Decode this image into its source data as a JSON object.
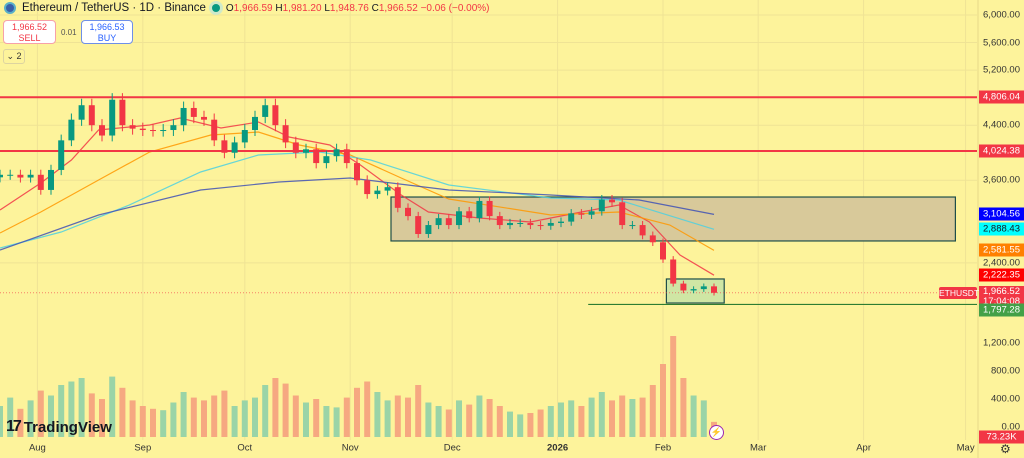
{
  "header": {
    "title": "Ethereum / TetherUS · 1D · Binance",
    "o_label": "O",
    "o": "1,966.59",
    "h_label": "H",
    "h": "1,981.20",
    "l_label": "L",
    "l": "1,948.76",
    "c_label": "C",
    "c": "1,966.52",
    "change": "−0.06 (−0.00%)"
  },
  "trade": {
    "sell_price": "1,966.52",
    "sell_label": "SELL",
    "spread": "0.01",
    "buy_price": "1,966.53",
    "buy_label": "BUY"
  },
  "indicators_toggle": "⌄ 2",
  "branding": "TradingView",
  "symbol_tag": "ETHUSDT",
  "countdown": "17:04:08",
  "colors": {
    "background": "#fdf39b",
    "up": "#089981",
    "down": "#f23645",
    "ma20": "#f23645",
    "ma50": "#ff9800",
    "ma100": "#4dd0e1",
    "ma200": "#3f51b5",
    "resistance": "#f23645",
    "support": "#4caf50",
    "range_box": "#d8c99a",
    "consolidation_box": "#cfe6a4"
  },
  "chart_data": {
    "type": "candlestick",
    "title": "",
    "price_axis": {
      "ticks": [
        "6,000.00",
        "5,600.00",
        "5,200.00",
        "4,400.00",
        "3,600.00",
        "2,400.00"
      ],
      "tick_values": [
        6000,
        5600,
        5200,
        4400,
        3600,
        2400
      ],
      "range": [
        1100,
        6100
      ]
    },
    "volume_axis": {
      "ticks": [
        "1,200.00",
        "800.00",
        "400.00",
        "0.00"
      ],
      "tick_values": [
        1200,
        800,
        400,
        0
      ]
    },
    "time_axis": {
      "ticks": [
        "Aug",
        "Sep",
        "Oct",
        "Nov",
        "Dec",
        "2026",
        "Feb",
        "Mar",
        "Apr",
        "May"
      ],
      "tick_dates": [
        "2025-08-01",
        "2025-09-01",
        "2025-10-01",
        "2025-11-01",
        "2025-12-01",
        "2026-01-01",
        "2026-02-01",
        "2026-03-01",
        "2026-04-01",
        "2026-05-01"
      ]
    },
    "grid": true,
    "dates": [
      "2025-07-21",
      "2025-07-24",
      "2025-07-27",
      "2025-07-30",
      "2025-08-02",
      "2025-08-05",
      "2025-08-08",
      "2025-08-11",
      "2025-08-14",
      "2025-08-17",
      "2025-08-20",
      "2025-08-23",
      "2025-08-26",
      "2025-08-29",
      "2025-09-01",
      "2025-09-04",
      "2025-09-07",
      "2025-09-10",
      "2025-09-13",
      "2025-09-16",
      "2025-09-19",
      "2025-09-22",
      "2025-09-25",
      "2025-09-28",
      "2025-10-01",
      "2025-10-04",
      "2025-10-07",
      "2025-10-10",
      "2025-10-13",
      "2025-10-16",
      "2025-10-19",
      "2025-10-22",
      "2025-10-25",
      "2025-10-28",
      "2025-10-31",
      "2025-11-03",
      "2025-11-06",
      "2025-11-09",
      "2025-11-12",
      "2025-11-15",
      "2025-11-18",
      "2025-11-21",
      "2025-11-24",
      "2025-11-27",
      "2025-11-30",
      "2025-12-03",
      "2025-12-06",
      "2025-12-09",
      "2025-12-12",
      "2025-12-15",
      "2025-12-18",
      "2025-12-21",
      "2025-12-24",
      "2025-12-27",
      "2025-12-30",
      "2026-01-02",
      "2026-01-05",
      "2026-01-08",
      "2026-01-11",
      "2026-01-14",
      "2026-01-17",
      "2026-01-20",
      "2026-01-23",
      "2026-01-26",
      "2026-01-29",
      "2026-02-01",
      "2026-02-04",
      "2026-02-07",
      "2026-02-10",
      "2026-02-13",
      "2026-02-16"
    ],
    "close": [
      3680,
      3680,
      3640,
      3680,
      3460,
      3750,
      4180,
      4480,
      4690,
      4400,
      4250,
      4770,
      4400,
      4350,
      4330,
      4320,
      4330,
      4400,
      4650,
      4520,
      4480,
      4180,
      4000,
      4150,
      4330,
      4520,
      4690,
      4400,
      4150,
      4000,
      4050,
      3850,
      3950,
      4050,
      3850,
      3600,
      3400,
      3450,
      3500,
      3200,
      3080,
      2820,
      2950,
      3050,
      2950,
      3150,
      3050,
      3300,
      3080,
      2950,
      2980,
      2980,
      2950,
      2940,
      2980,
      3000,
      3120,
      3100,
      3150,
      3320,
      3280,
      2950,
      2950,
      2800,
      2700,
      2450,
      2100,
      2000,
      2020,
      2060,
      1966.52
    ],
    "volume": [
      300,
      420,
      260,
      380,
      520,
      450,
      600,
      650,
      700,
      480,
      400,
      720,
      560,
      380,
      300,
      260,
      240,
      350,
      500,
      420,
      380,
      450,
      520,
      300,
      380,
      420,
      600,
      700,
      620,
      450,
      350,
      400,
      300,
      280,
      420,
      560,
      650,
      500,
      380,
      450,
      420,
      600,
      350,
      300,
      250,
      380,
      320,
      450,
      400,
      300,
      220,
      180,
      200,
      250,
      300,
      350,
      380,
      300,
      420,
      500,
      380,
      450,
      400,
      420,
      600,
      900,
      1300,
      700,
      450,
      380,
      73.23
    ],
    "volume_last": "73.23K",
    "moving_averages": [
      {
        "key": "ma20",
        "last": "2,222.35",
        "points": [
          [
            "2025-07-21",
            3169
          ],
          [
            "2025-08-02",
            3560
          ],
          [
            "2025-08-11",
            3895
          ],
          [
            "2025-08-19",
            4330
          ],
          [
            "2025-09-03",
            4403
          ],
          [
            "2025-09-12",
            4504
          ],
          [
            "2025-09-24",
            4359
          ],
          [
            "2025-10-05",
            4446
          ],
          [
            "2025-10-14",
            4228
          ],
          [
            "2025-10-26",
            4112
          ],
          [
            "2025-11-04",
            3822
          ],
          [
            "2025-11-16",
            3386
          ],
          [
            "2025-11-24",
            3140
          ],
          [
            "2025-12-09",
            3053
          ],
          [
            "2025-12-24",
            2995
          ],
          [
            "2026-01-08",
            3140
          ],
          [
            "2026-01-19",
            3241
          ],
          [
            "2026-01-28",
            2995
          ],
          [
            "2026-02-06",
            2515
          ],
          [
            "2026-02-16",
            2222.35
          ]
        ]
      },
      {
        "key": "ma50",
        "last": "2,581.55",
        "points": [
          [
            "2025-07-21",
            2835
          ],
          [
            "2025-08-02",
            3140
          ],
          [
            "2025-08-19",
            3604
          ],
          [
            "2025-09-03",
            4011
          ],
          [
            "2025-09-21",
            4258
          ],
          [
            "2025-10-05",
            4301
          ],
          [
            "2025-10-17",
            4112
          ],
          [
            "2025-11-01",
            3967
          ],
          [
            "2025-11-16",
            3633
          ],
          [
            "2025-11-30",
            3328
          ],
          [
            "2025-12-30",
            3096
          ],
          [
            "2026-01-19",
            3140
          ],
          [
            "2026-02-03",
            2951
          ],
          [
            "2026-02-16",
            2581.55
          ]
        ]
      },
      {
        "key": "ma100",
        "last": "2,888.43",
        "points": [
          [
            "2025-07-21",
            2617
          ],
          [
            "2025-08-08",
            2849
          ],
          [
            "2025-08-28",
            3240
          ],
          [
            "2025-09-18",
            3720
          ],
          [
            "2025-10-05",
            3967
          ],
          [
            "2025-10-23",
            4011
          ],
          [
            "2025-11-07",
            3895
          ],
          [
            "2025-11-30",
            3532
          ],
          [
            "2025-12-30",
            3343
          ],
          [
            "2026-01-19",
            3314
          ],
          [
            "2026-02-16",
            2888.43
          ]
        ]
      },
      {
        "key": "ma200",
        "last": "3,104.56",
        "points": [
          [
            "2025-07-21",
            2588
          ],
          [
            "2025-08-19",
            3096
          ],
          [
            "2025-09-18",
            3459
          ],
          [
            "2025-10-11",
            3575
          ],
          [
            "2025-11-01",
            3633
          ],
          [
            "2025-11-30",
            3459
          ],
          [
            "2025-12-30",
            3386
          ],
          [
            "2026-01-25",
            3314
          ],
          [
            "2026-02-16",
            3104.56
          ]
        ]
      }
    ],
    "horizontal_lines": [
      {
        "price": 4806.04,
        "label": "4,806.04",
        "key": "resistance"
      },
      {
        "price": 4024.38,
        "label": "4,024.38",
        "key": "resistance"
      }
    ],
    "support_line": {
      "price": 1797.28,
      "label": "1,797.28",
      "from": "2026-01-10"
    },
    "boxes": [
      {
        "key": "range_box",
        "from": "2025-11-13",
        "to": "2026-04-28",
        "top": 3357,
        "bottom": 2719
      },
      {
        "key": "consolidation_box",
        "from": "2026-02-02",
        "to": "2026-02-19",
        "top": 2167,
        "bottom": 1818
      }
    ],
    "last_price": "1,966.52"
  }
}
